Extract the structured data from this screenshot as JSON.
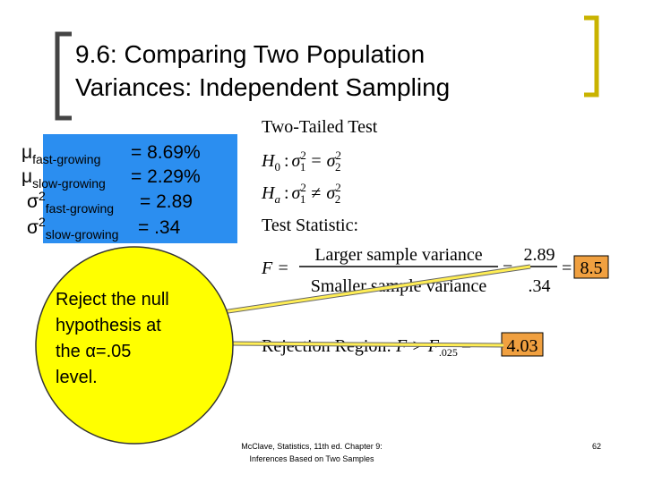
{
  "title": "9.6: Comparing Two Population Variances: Independent Sampling",
  "summary": [
    {
      "symbol": "μ",
      "sub": "fast-growing",
      "value": "= 8.69%"
    },
    {
      "symbol": "μ",
      "sub": "slow-growing",
      "value": "= 2.29%"
    },
    {
      "symbol": "σ",
      "sup": "2",
      "sub": "fast-growing",
      "value": "= 2.89"
    },
    {
      "symbol": "σ",
      "sup": "2",
      "sub": "slow-growing",
      "value": "= .34"
    }
  ],
  "test": {
    "heading": "Two-Tailed Test",
    "h0": {
      "symbol": "H",
      "sub": "0",
      "sep": ":",
      "lhs": "σ",
      "lhs_sup": "2",
      "lhs_sub": "1",
      "op": "=",
      "rhs": "σ",
      "rhs_sup": "2",
      "rhs_sub": "2"
    },
    "ha": {
      "symbol": "H",
      "sub": "a",
      "sep": ":",
      "lhs": "σ",
      "lhs_sup": "2",
      "lhs_sub": "1",
      "op": "≠",
      "rhs": "σ",
      "rhs_sup": "2",
      "rhs_sub": "2"
    },
    "statistic_label": "Test Statistic:",
    "formula": {
      "lhs": "F =",
      "numerator": "Larger sample variance",
      "denominator": "Smaller sample variance",
      "eq1": "=",
      "num_value": "2.89",
      "den_value": ".34",
      "eq2": "=",
      "result": "8.5"
    },
    "rejection": {
      "label": "Rejection Region:",
      "lhs": "F >",
      "critical": "F",
      "critical_sub": ".025",
      "eq": "=",
      "value": "4.03"
    }
  },
  "callout": [
    "Reject the null",
    "hypothesis at",
    "the α=.05",
    "level."
  ],
  "footer": {
    "source": [
      "McClave, Statistics, 11th ed. Chapter 9:",
      "Inferences Based on Two Samples"
    ],
    "page": "62"
  }
}
